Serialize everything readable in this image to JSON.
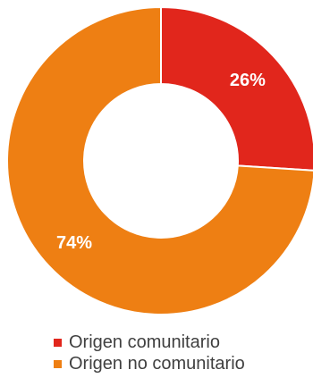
{
  "chart_data": {
    "type": "pie",
    "variant": "donut",
    "categories": [
      "Origen comunitario",
      "Origen no comunitario"
    ],
    "values": [
      26,
      74
    ],
    "labels": [
      "26%",
      "74%"
    ],
    "colors": [
      "#e1261c",
      "#ee7f13"
    ],
    "start": "top, clockwise",
    "legend": "bottom"
  }
}
